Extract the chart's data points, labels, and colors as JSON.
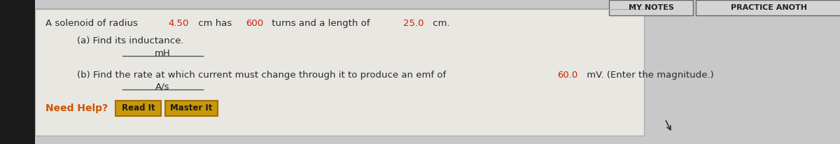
{
  "bg_color": "#c8c8c8",
  "content_bg": "#e8e7e2",
  "left_strip_color": "#1a1a1a",
  "main_text_color": "#2a2a2a",
  "highlight_color": "#cc2200",
  "need_help_color": "#cc5500",
  "button_face_color": "#c8980a",
  "button_edge_color": "#a07008",
  "button_text_color": "#1a1a1a",
  "top_right_bg": "#c8c8c8",
  "top_btn_edge": "#555555",
  "line1": "A solenoid of radius ",
  "line1_r1": "4.50",
  "line1_m1": " cm has ",
  "line1_r2": "600",
  "line1_m2": " turns and a length of ",
  "line1_r3": "25.0",
  "line1_m3": " cm.",
  "part_a_label": "(a) Find its inductance.",
  "part_a_unit": "mH",
  "part_b_label": "(b) Find the rate at which current must change through it to produce an emf of ",
  "part_b_highlight": "60.0",
  "part_b_end": " mV. (Enter the magnitude.)",
  "part_b_unit": "A/s",
  "need_help_label": "Need Help?",
  "button1_label": "Read It",
  "button2_label": "Master It",
  "top_right_label1": "MY NOTES",
  "top_right_label2": "PRACTICE ANOTH"
}
